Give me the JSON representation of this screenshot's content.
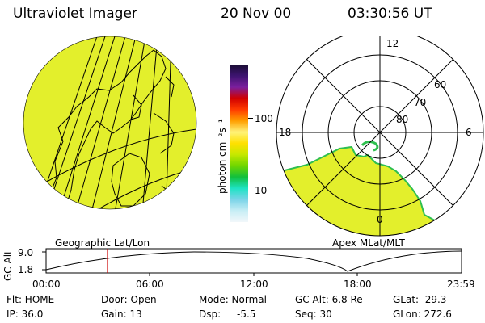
{
  "header": {
    "title": "Ultraviolet Imager",
    "date": "20 Nov 00",
    "time": "03:30:56 UT"
  },
  "colorbar": {
    "unit_label": "photon cm⁻²s⁻¹",
    "ticks": [
      "100",
      "10"
    ],
    "colors": [
      "#1a0d33",
      "#3d1470",
      "#7a1f9e",
      "#d10000",
      "#ff3b00",
      "#ff9e00",
      "#fff37a",
      "#ffe000",
      "#c6e800",
      "#6fd600",
      "#11bf3d",
      "#1fe3c4",
      "#7ad4e8",
      "#c8eef5",
      "#f2f7fa"
    ]
  },
  "left_map": {
    "label": "Geographic Lat/Lon",
    "fill": "#e3ef2c"
  },
  "right_map": {
    "label": "Apex MLat/MLT",
    "mlt_labels": {
      "top": "12",
      "left": "18",
      "right": "6",
      "bottom": "0"
    },
    "lat_labels": [
      "60",
      "70",
      "80"
    ],
    "fill": "#e3ef2c"
  },
  "altitude_plot": {
    "ylabel": "GC Alt",
    "yticks": [
      "9.0",
      "1.8"
    ],
    "xticks": [
      "00:00",
      "06:00",
      "12:00",
      "18:00",
      "23:59"
    ],
    "marker_color": "#cc0000"
  },
  "status": {
    "flt": "Flt: HOME",
    "ip": "IP: 36.0",
    "door": "Door: Open",
    "gain": "Gain: 13",
    "mode": "Mode: Normal",
    "dsp_label": "Dsp:",
    "dsp_value": "-5.5",
    "gc_alt": "GC Alt: 6.8 Re",
    "seq": "Seq: 30",
    "glat": "GLat:  29.3",
    "glon": "GLon: 272.6"
  }
}
